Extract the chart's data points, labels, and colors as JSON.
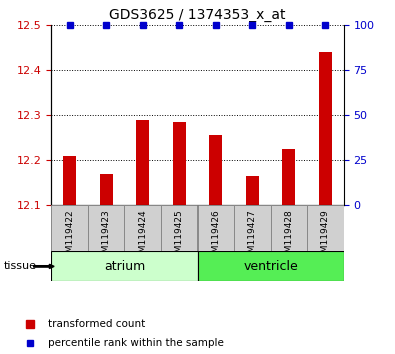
{
  "title": "GDS3625 / 1374353_x_at",
  "samples": [
    "GSM119422",
    "GSM119423",
    "GSM119424",
    "GSM119425",
    "GSM119426",
    "GSM119427",
    "GSM119428",
    "GSM119429"
  ],
  "bar_values": [
    12.21,
    12.17,
    12.29,
    12.285,
    12.255,
    12.165,
    12.225,
    12.44
  ],
  "percentile_values": [
    100,
    100,
    100,
    100,
    100,
    100,
    100,
    100
  ],
  "bar_color": "#cc0000",
  "dot_color": "#0000cc",
  "ylim_left": [
    12.1,
    12.5
  ],
  "ylim_right": [
    0,
    100
  ],
  "yticks_left": [
    12.1,
    12.2,
    12.3,
    12.4,
    12.5
  ],
  "yticks_right": [
    0,
    25,
    50,
    75,
    100
  ],
  "tissue_groups": [
    {
      "label": "atrium",
      "start": 0,
      "end": 3,
      "color": "#ccffcc"
    },
    {
      "label": "ventricle",
      "start": 4,
      "end": 7,
      "color": "#55ee55"
    }
  ],
  "tissue_label": "tissue",
  "legend_bar_label": "transformed count",
  "legend_dot_label": "percentile rank within the sample",
  "tick_label_color_left": "#cc0000",
  "tick_label_color_right": "#0000cc",
  "sample_box_color": "#d0d0d0",
  "bar_width": 0.35
}
